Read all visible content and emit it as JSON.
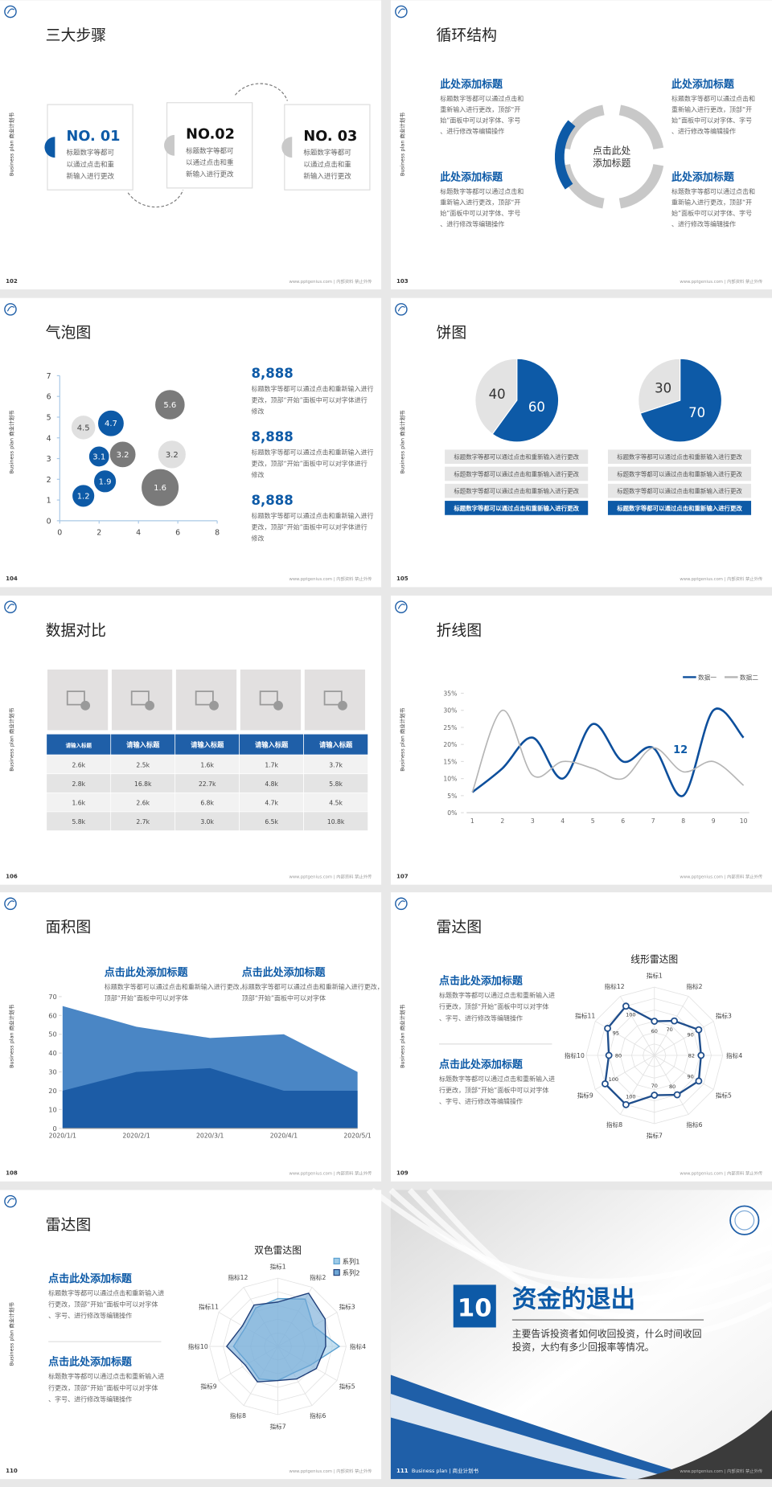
{
  "side_label": "Business plan 商业计划书",
  "footer_note": "www.pptgenius.com | 内部资料 禁止外传",
  "slides": [
    {
      "page": 102,
      "title": "三大步骤",
      "steps": [
        {
          "number": "NO. 01",
          "text": "标题数字等都可以通过点击和重新输入进行更改"
        },
        {
          "number": "NO.02",
          "text": "标题数字等都可以通过点击和重新输入进行更改"
        },
        {
          "number": "NO. 03",
          "text": "标题数字等都可以通过点击和重新输入进行更改"
        }
      ]
    },
    {
      "page": 103,
      "title": "循环结构",
      "center": "点击此处添加标题",
      "items": [
        {
          "title": "此处添加标题",
          "text": "标题数字等都可以通过点击和重新输入进行更改，顶部“开始”面板中可以对字体、字号、进行修改等编辑操作"
        },
        {
          "title": "此处添加标题",
          "text": "标题数字等都可以通过点击和重新输入进行更改，顶部“开始”面板中可以对字体、字号、进行修改等编辑操作"
        },
        {
          "title": "此处添加标题",
          "text": "标题数字等都可以通过点击和重新输入进行更改，顶部“开始”面板中可以对字体、字号、进行修改等编辑操作"
        },
        {
          "title": "此处添加标题",
          "text": "标题数字等都可以通过点击和重新输入进行更改，顶部“开始”面板中可以对字体、字号、进行修改等编辑操作"
        }
      ]
    },
    {
      "page": 104,
      "title": "气泡图",
      "items": [
        {
          "value": "8,888",
          "text": "标题数字等都可以通过点击和重新输入进行更改，顶部“开始”面板中可以对字体进行修改"
        },
        {
          "value": "8,888",
          "text": "标题数字等都可以通过点击和重新输入进行更改，顶部“开始”面板中可以对字体进行修改"
        },
        {
          "value": "8,888",
          "text": "标题数字等都可以通过点击和重新输入进行更改，顶部“开始”面板中可以对字体进行修改"
        }
      ]
    },
    {
      "page": 105,
      "title": "饼图",
      "lists": [
        [
          "标题数字等都可以通过点击和重新输入进行更改",
          "标题数字等都可以通过点击和重新输入进行更改",
          "标题数字等都可以通过点击和重新输入进行更改",
          "标题数字等都可以通过点击和重新输入进行更改"
        ],
        [
          "标题数字等都可以通过点击和重新输入进行更改",
          "标题数字等都可以通过点击和重新输入进行更改",
          "标题数字等都可以通过点击和重新输入进行更改",
          "标题数字等都可以通过点击和重新输入进行更改"
        ]
      ]
    },
    {
      "page": 106,
      "title": "数据对比",
      "table": {
        "header": [
          "请输入标题",
          "请输入标题",
          "请输入标题",
          "请输入标题",
          "请输入标题"
        ],
        "rows": [
          [
            "2.6k",
            "2.5k",
            "1.6k",
            "1.7k",
            "3.7k"
          ],
          [
            "2.8k",
            "16.8k",
            "22.7k",
            "4.8k",
            "5.8k"
          ],
          [
            "1.6k",
            "2.6k",
            "6.8k",
            "4.7k",
            "4.5k"
          ],
          [
            "5.8k",
            "2.7k",
            "3.0k",
            "6.5k",
            "10.8k"
          ]
        ]
      }
    },
    {
      "page": 107,
      "title": "折线图"
    },
    {
      "page": 108,
      "title": "面积图",
      "items": [
        {
          "title": "点击此处添加标题",
          "text": "标题数字等都可以通过点击和重新输入进行更改，顶部“开始”面板中可以对字体"
        },
        {
          "title": "点击此处添加标题",
          "text": "标题数字等都可以通过点击和重新输入进行更改，顶部“开始”面板中可以对字体"
        }
      ]
    },
    {
      "page": 109,
      "title": "雷达图",
      "items": [
        {
          "title": "点击此处添加标题",
          "text": "标题数字等都可以通过点击和重新输入进行更改，顶部“开始”面板中可以对字体、字号、进行修改等编辑操作"
        },
        {
          "title": "点击此处添加标题",
          "text": "标题数字等都可以通过点击和重新输入进行更改，顶部“开始”面板中可以对字体、字号、进行修改等编辑操作"
        }
      ]
    },
    {
      "page": 110,
      "title": "雷达图",
      "items": [
        {
          "title": "点击此处添加标题",
          "text": "标题数字等都可以通过点击和重新输入进行更改，顶部“开始”面板中可以对字体、字号、进行修改等编辑操作"
        },
        {
          "title": "点击此处添加标题",
          "text": "标题数字等都可以通过点击和重新输入进行更改，顶部“开始”面板中可以对字体、字号、进行修改等编辑操作"
        }
      ]
    },
    {
      "page": 111,
      "number": 10,
      "title": "资金的退出",
      "text": "主要告诉投资者如何收回投资，什么时间收回投资，大约有多少回报率等情况。",
      "footer": "Business plan | 商业计划书"
    }
  ],
  "chart_data": [
    {
      "type": "bubble",
      "xlim": [
        0,
        8
      ],
      "xticks": [
        0,
        2,
        4,
        6,
        8
      ],
      "ylim": [
        0,
        7
      ],
      "yticks": [
        0,
        1,
        2,
        3,
        4,
        5,
        6,
        7
      ],
      "series": [
        {
          "color": "#0d5aa7",
          "label_color": "#ffffff",
          "x": [
            1.2,
            2.3,
            2,
            2.6
          ],
          "y": [
            1.2,
            1.9,
            3.1,
            4.7
          ],
          "size": [
            12,
            12,
            11,
            14
          ]
        },
        {
          "color": "#e0e0e0",
          "label_color": "#444444",
          "x": [
            1.2,
            5.7
          ],
          "y": [
            4.5,
            3.2
          ],
          "size": [
            13,
            15
          ]
        },
        {
          "color": "#7a7a7a",
          "label_color": "#ffffff",
          "x": [
            3.2,
            5.6,
            5.1
          ],
          "y": [
            3.2,
            5.6,
            1.6
          ],
          "size": [
            14,
            16,
            20
          ]
        }
      ]
    },
    {
      "type": "pie",
      "values": [
        60,
        40
      ],
      "colors": [
        "#0d5aa7",
        "#e3e3e3"
      ],
      "label_colors": [
        "#ffffff",
        "#333333"
      ]
    },
    {
      "type": "pie",
      "values": [
        70,
        30
      ],
      "colors": [
        "#0d5aa7",
        "#e3e3e3"
      ],
      "label_colors": [
        "#ffffff",
        "#333333"
      ]
    },
    {
      "type": "line",
      "x": [
        1,
        2,
        3,
        4,
        5,
        6,
        7,
        8,
        9,
        10
      ],
      "xlim": [
        1,
        10
      ],
      "ylim": [
        0,
        35
      ],
      "yticks": [
        {
          "value": 0,
          "label": "0%"
        },
        {
          "value": 5,
          "label": "5%"
        },
        {
          "value": 10,
          "label": "10%"
        },
        {
          "value": 15,
          "label": "15%"
        },
        {
          "value": 20,
          "label": "20%"
        },
        {
          "value": 25,
          "label": "25%"
        },
        {
          "value": 30,
          "label": "30%"
        },
        {
          "value": 35,
          "label": "35%"
        }
      ],
      "series": [
        {
          "name": "数据一",
          "color": "#0d4f9c",
          "values": [
            6,
            13,
            22,
            10,
            26,
            15,
            19,
            5,
            30,
            22
          ]
        },
        {
          "name": "数据二",
          "color": "#b5b5b5",
          "values": [
            6,
            30,
            11,
            15,
            13,
            10,
            19,
            12,
            15,
            8
          ]
        }
      ],
      "annotation": "12"
    },
    {
      "type": "area",
      "categories": [
        "2020/1/1",
        "2020/2/1",
        "2020/3/1",
        "2020/4/1",
        "2020/5/1"
      ],
      "ylim": [
        0,
        70
      ],
      "yticks": [
        0,
        10,
        20,
        30,
        40,
        50,
        60,
        70
      ],
      "series": [
        {
          "color": "#4a86c5",
          "values": [
            65,
            54,
            48,
            50,
            30
          ]
        },
        {
          "color": "#1c5ca6",
          "values": [
            20,
            30,
            32,
            20,
            20
          ]
        }
      ]
    },
    {
      "type": "radar",
      "title": "线形雷达图",
      "categories": [
        "指标1",
        "指标2",
        "指标3",
        "指标4",
        "指标5",
        "指标6",
        "指标7",
        "指标8",
        "指标9",
        "指标10",
        "指标11",
        "指标12"
      ],
      "rlim": [
        0,
        120
      ],
      "rticks": [
        20,
        40,
        60,
        80,
        100,
        120
      ],
      "show_values": true,
      "series": [
        {
          "color": "#1f4e8c",
          "values": [
            60,
            70,
            90,
            82,
            90,
            80,
            70,
            100,
            100,
            80,
            95,
            100
          ]
        }
      ]
    },
    {
      "type": "radar",
      "title": "双色雷达图",
      "categories": [
        "指标1",
        "指标2",
        "指标3",
        "指标4",
        "指标5",
        "指标6",
        "指标7",
        "指标8",
        "指标9",
        "指标10",
        "指标11",
        "指标12"
      ],
      "rlim": [
        0,
        100
      ],
      "rticks": [
        20,
        40,
        60,
        80,
        100
      ],
      "show_values": false,
      "series": [
        {
          "name": "系列1",
          "color": "#5aa0d0",
          "fill": "#9fcbe8",
          "values": [
            70,
            80,
            60,
            90,
            55,
            45,
            50,
            55,
            50,
            65,
            55,
            65
          ]
        },
        {
          "name": "系列2",
          "color": "#1f3f7a",
          "fill": "#6fa7d6",
          "values": [
            65,
            90,
            80,
            70,
            65,
            55,
            50,
            60,
            55,
            75,
            60,
            70
          ]
        }
      ]
    }
  ]
}
